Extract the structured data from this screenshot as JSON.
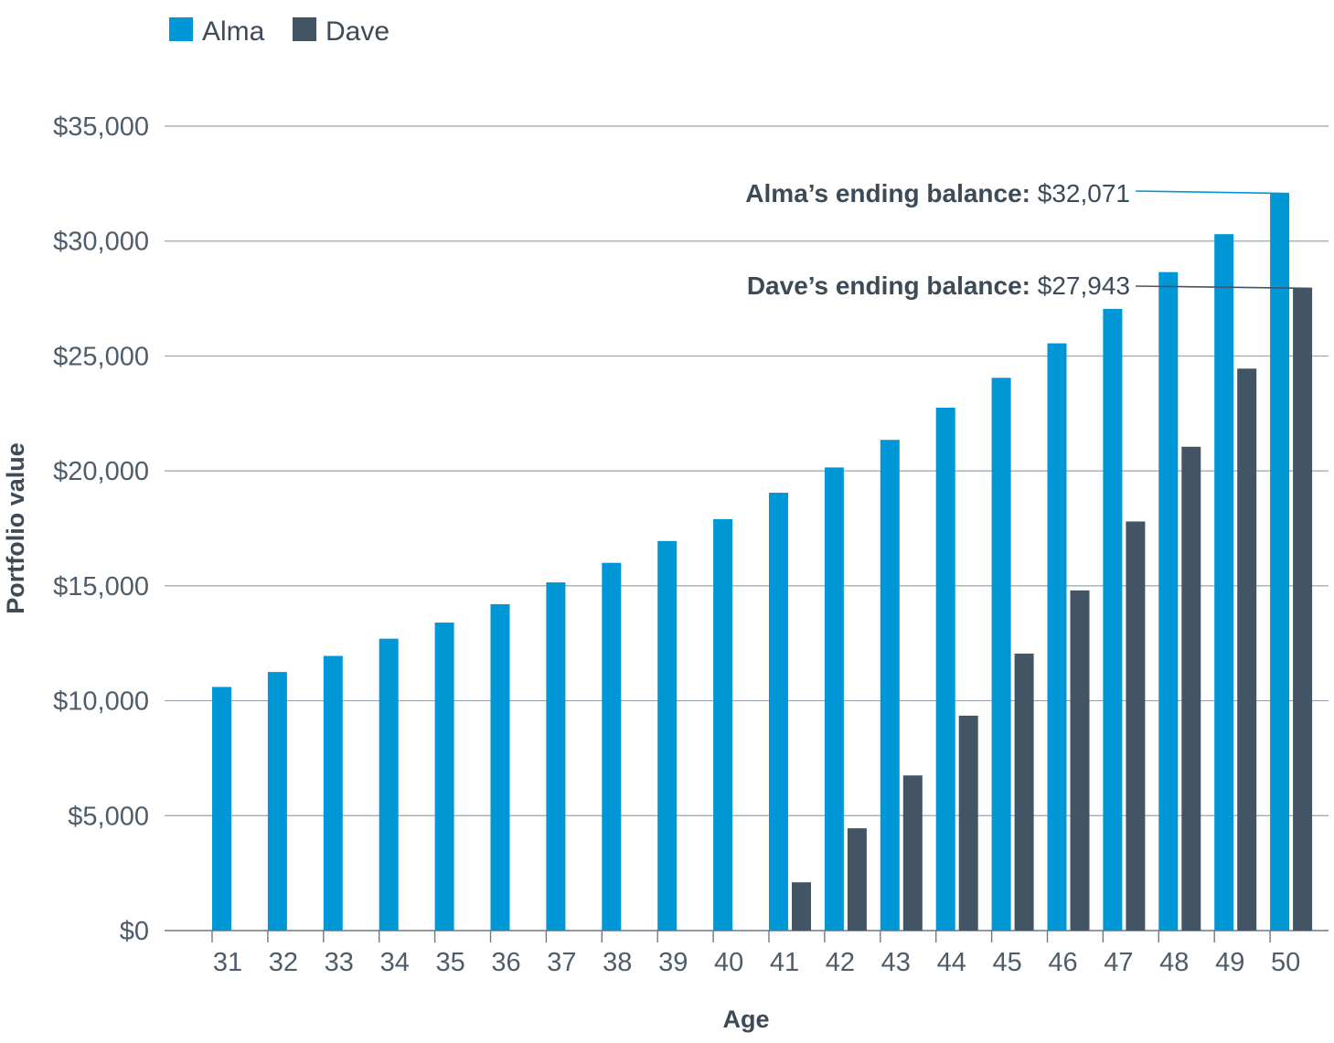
{
  "chart_data": {
    "type": "bar",
    "xlabel": "Age",
    "ylabel": "Portfolio value",
    "ylim": [
      0,
      35000
    ],
    "y_ticks": [
      0,
      5000,
      10000,
      15000,
      20000,
      25000,
      30000,
      35000
    ],
    "y_tick_labels": [
      "$0",
      "$5,000",
      "$10,000",
      "$15,000",
      "$20,000",
      "$25,000",
      "$30,000",
      "$35,000"
    ],
    "grid": true,
    "legend_position": "top-left",
    "categories": [
      "31",
      "32",
      "33",
      "34",
      "35",
      "36",
      "37",
      "38",
      "39",
      "40",
      "41",
      "42",
      "43",
      "44",
      "45",
      "46",
      "47",
      "48",
      "49",
      "50"
    ],
    "series": [
      {
        "name": "Alma",
        "color": "#0097d6",
        "values": [
          10600,
          11250,
          11950,
          12700,
          13400,
          14200,
          15150,
          16000,
          16950,
          17900,
          19050,
          20150,
          21350,
          22750,
          24050,
          25550,
          27050,
          28650,
          30300,
          32071
        ]
      },
      {
        "name": "Dave",
        "color": "#435565",
        "values": [
          null,
          null,
          null,
          null,
          null,
          null,
          null,
          null,
          null,
          null,
          2100,
          4450,
          6750,
          9350,
          12050,
          14800,
          17800,
          21050,
          24450,
          27943
        ]
      }
    ],
    "annotations": [
      {
        "label": "Alma’s ending balance:",
        "value": "$32,071",
        "series": "Alma",
        "category": "50"
      },
      {
        "label": "Dave’s ending balance:",
        "value": "$27,943",
        "series": "Dave",
        "category": "50"
      }
    ]
  }
}
